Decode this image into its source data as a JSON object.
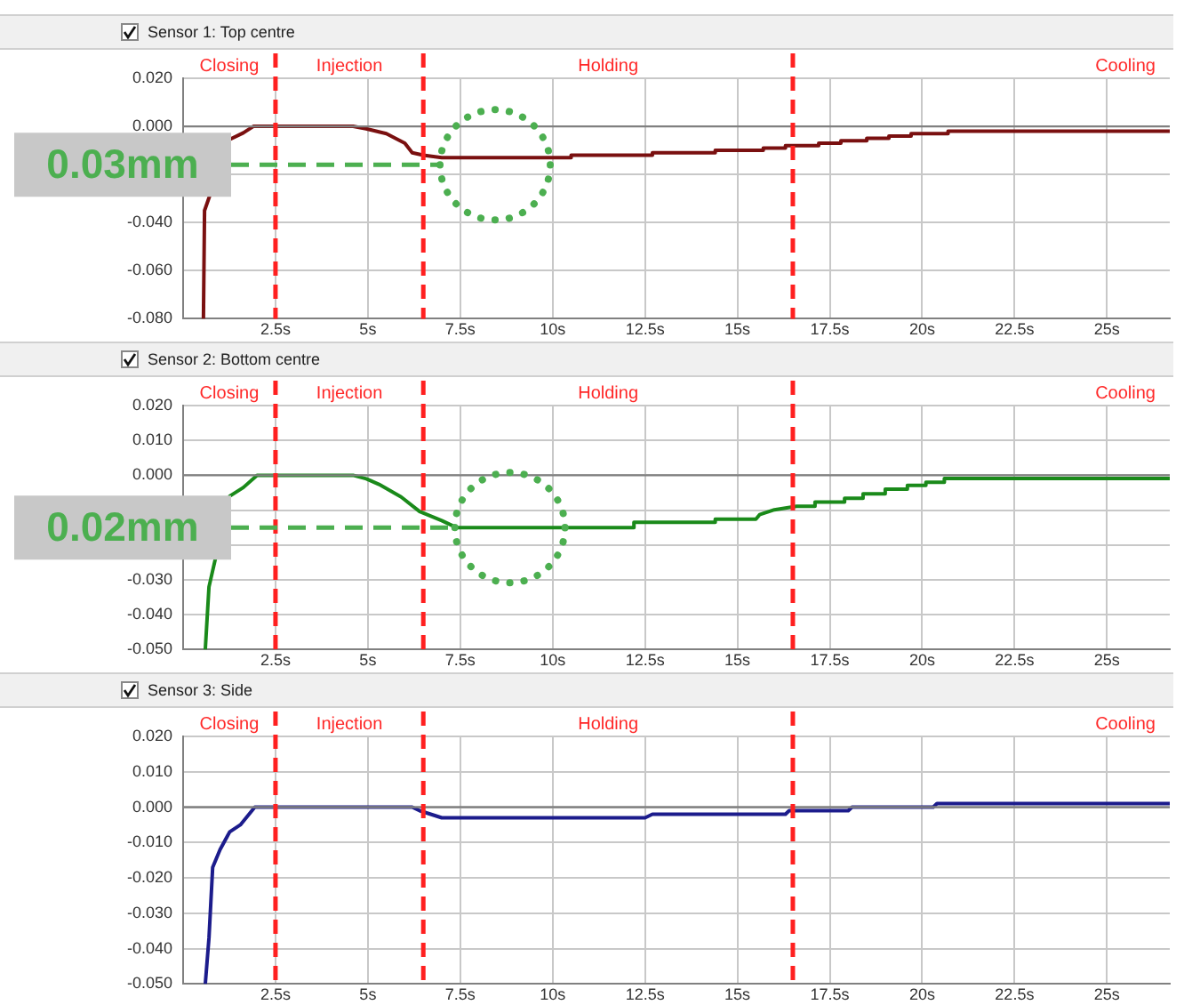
{
  "chart_data": [
    {
      "type": "line",
      "title": "Sensor 1: Top centre",
      "xlim": [
        0,
        26.7
      ],
      "ylim": [
        -0.08,
        0.02
      ],
      "xticks": [
        {
          "value": 2.5,
          "label": "2.5s"
        },
        {
          "value": 5,
          "label": "5s"
        },
        {
          "value": 7.5,
          "label": "7.5s"
        },
        {
          "value": 10,
          "label": "10s"
        },
        {
          "value": 12.5,
          "label": "12.5s"
        },
        {
          "value": 15,
          "label": "15s"
        },
        {
          "value": 17.5,
          "label": "17.5s"
        },
        {
          "value": 20,
          "label": "20s"
        },
        {
          "value": 22.5,
          "label": "22.5s"
        },
        {
          "value": 25,
          "label": "25s"
        }
      ],
      "yticks": [
        {
          "value": 0.02,
          "label": "0.020"
        },
        {
          "value": 0,
          "label": "0.000"
        },
        {
          "value": -0.02,
          "label": null
        },
        {
          "value": -0.04,
          "label": "-0.040"
        },
        {
          "value": -0.06,
          "label": "-0.060"
        },
        {
          "value": -0.08,
          "label": "-0.080"
        }
      ],
      "grid": true,
      "legend": false,
      "marker": "none",
      "series": [
        {
          "color": "#7a1010",
          "x": [
            0.55,
            0.58,
            0.6,
            0.7,
            1.25,
            1.63,
            1.9,
            4.6,
            4.95,
            5.5,
            6.0,
            6.2,
            6.5,
            7.0,
            10.5,
            10.5,
            12.7,
            12.7,
            14.4,
            14.4,
            15.7,
            15.7,
            16.3,
            16.3,
            17.2,
            17.2,
            17.8,
            17.8,
            18.5,
            18.5,
            19.1,
            19.1,
            19.7,
            19.7,
            20.7,
            20.7,
            26.7
          ],
          "values": [
            -0.08,
            -0.035,
            null,
            null,
            -0.0055,
            -0.0027,
            0,
            0,
            -0.001,
            -0.003,
            -0.007,
            -0.011,
            -0.012,
            -0.013,
            -0.013,
            -0.012,
            -0.012,
            -0.011,
            -0.011,
            -0.01,
            -0.01,
            -0.009,
            -0.009,
            -0.008,
            -0.008,
            -0.007,
            -0.007,
            -0.006,
            -0.006,
            -0.005,
            -0.005,
            -0.004,
            -0.004,
            -0.003,
            -0.003,
            -0.002,
            -0.002
          ]
        }
      ],
      "ref_lines": [
        {
          "axis": "y",
          "value": 0,
          "color": "#808080",
          "line_style": "solid"
        },
        {
          "axis": "x",
          "value": 2.5,
          "color": "#ff2020",
          "line_style": "dashed"
        },
        {
          "axis": "x",
          "value": 6.5,
          "color": "#ff2020",
          "line_style": "dashed"
        },
        {
          "axis": "x",
          "value": 16.5,
          "color": "#ff2020",
          "line_style": "dashed"
        }
      ],
      "annotations": [
        "Closing",
        "Injection",
        "Holding",
        "Cooling",
        {
          "text": "0.03mm",
          "x": 7,
          "y": -0.016
        }
      ]
    },
    {
      "type": "line",
      "title": "Sensor 2: Bottom centre",
      "xlim": [
        0,
        26.7
      ],
      "ylim": [
        -0.05,
        0.02
      ],
      "xticks": [
        {
          "value": 2.5,
          "label": "2.5s"
        },
        {
          "value": 5,
          "label": "5s"
        },
        {
          "value": 7.5,
          "label": "7.5s"
        },
        {
          "value": 10,
          "label": "10s"
        },
        {
          "value": 12.5,
          "label": "12.5s"
        },
        {
          "value": 15,
          "label": "15s"
        },
        {
          "value": 17.5,
          "label": "17.5s"
        },
        {
          "value": 20,
          "label": "20s"
        },
        {
          "value": 22.5,
          "label": "22.5s"
        },
        {
          "value": 25,
          "label": "25s"
        }
      ],
      "yticks": [
        {
          "value": 0.02,
          "label": "0.020"
        },
        {
          "value": 0.01,
          "label": "0.010"
        },
        {
          "value": 0,
          "label": "0.000"
        },
        {
          "value": -0.01,
          "label": null
        },
        {
          "value": -0.02,
          "label": null
        },
        {
          "value": -0.03,
          "label": "-0.030"
        },
        {
          "value": -0.04,
          "label": "-0.040"
        },
        {
          "value": -0.05,
          "label": "-0.050"
        }
      ],
      "grid": true,
      "legend": false,
      "marker": "none",
      "series": [
        {
          "color": "#1a8a1a",
          "x": [
            0.6,
            0.7,
            0.8,
            1.0,
            1.26,
            1.63,
            2.0,
            4.6,
            4.96,
            5.3,
            5.9,
            6.4,
            7.0,
            7.4,
            12.2,
            12.2,
            14.4,
            14.4,
            15.5,
            15.6,
            16.0,
            16.6,
            17.1,
            17.1,
            17.9,
            17.9,
            18.4,
            18.4,
            19.0,
            19.0,
            19.6,
            19.6,
            20.1,
            20.1,
            20.6,
            20.6,
            26.7
          ],
          "values": [
            -0.05,
            -0.032,
            null,
            null,
            -0.006,
            -0.0035,
            0,
            0,
            -0.001,
            -0.0026,
            -0.0062,
            -0.0104,
            -0.013,
            -0.015,
            -0.015,
            -0.0135,
            -0.0135,
            -0.0126,
            -0.0126,
            -0.0113,
            -0.0099,
            -0.0089,
            -0.0089,
            -0.0077,
            -0.0077,
            -0.0066,
            -0.0066,
            -0.0053,
            -0.0053,
            -0.004,
            -0.004,
            -0.0029,
            -0.0029,
            -0.002,
            -0.002,
            -0.0009,
            -0.0009
          ]
        }
      ],
      "ref_lines": [
        {
          "axis": "y",
          "value": 0,
          "color": "#808080",
          "line_style": "solid"
        },
        {
          "axis": "x",
          "value": 2.5,
          "color": "#ff2020",
          "line_style": "dashed"
        },
        {
          "axis": "x",
          "value": 6.5,
          "color": "#ff2020",
          "line_style": "dashed"
        },
        {
          "axis": "x",
          "value": 16.5,
          "color": "#ff2020",
          "line_style": "dashed"
        }
      ],
      "annotations": [
        "Closing",
        "Injection",
        "Holding",
        "Cooling",
        {
          "text": "0.02mm",
          "x": 7.4,
          "y": -0.015
        }
      ]
    },
    {
      "type": "line",
      "title": "Sensor 3: Side",
      "xlim": [
        0,
        26.7
      ],
      "ylim": [
        -0.05,
        0.02
      ],
      "xticks": [
        {
          "value": 2.5,
          "label": "2.5s"
        },
        {
          "value": 5,
          "label": "5s"
        },
        {
          "value": 7.5,
          "label": "7.5s"
        },
        {
          "value": 10,
          "label": "10s"
        },
        {
          "value": 12.5,
          "label": "12.5s"
        },
        {
          "value": 15,
          "label": "15s"
        },
        {
          "value": 17.5,
          "label": "17.5s"
        },
        {
          "value": 20,
          "label": "20s"
        },
        {
          "value": 22.5,
          "label": "22.5s"
        },
        {
          "value": 25,
          "label": "25s"
        }
      ],
      "yticks": [
        {
          "value": 0.02,
          "label": "0.020"
        },
        {
          "value": 0.01,
          "label": "0.010"
        },
        {
          "value": 0,
          "label": "0.000"
        },
        {
          "value": -0.01,
          "label": "-0.010"
        },
        {
          "value": -0.02,
          "label": "-0.020"
        },
        {
          "value": -0.03,
          "label": "-0.030"
        },
        {
          "value": -0.04,
          "label": "-0.040"
        },
        {
          "value": -0.05,
          "label": "-0.050"
        }
      ],
      "grid": true,
      "legend": false,
      "marker": "none",
      "series": [
        {
          "color": "#1c1c8c",
          "x": [
            0.6,
            0.7,
            0.8,
            1.0,
            1.26,
            1.55,
            1.94,
            6.2,
            6.4,
            6.7,
            7.0,
            12.5,
            12.7,
            16.3,
            16.4,
            18.0,
            18.1,
            20.3,
            20.4,
            26.7
          ],
          "values": [
            -0.05,
            -0.037,
            -0.017,
            -0.012,
            -0.007,
            -0.005,
            0,
            0,
            -0.001,
            -0.002,
            -0.003,
            -0.003,
            -0.002,
            -0.002,
            -0.001,
            -0.001,
            0,
            0,
            0.001,
            0.001
          ]
        }
      ],
      "ref_lines": [
        {
          "axis": "y",
          "value": 0,
          "color": "#808080",
          "line_style": "solid"
        },
        {
          "axis": "x",
          "value": 2.5,
          "color": "#ff2020",
          "line_style": "dashed"
        },
        {
          "axis": "x",
          "value": 6.5,
          "color": "#ff2020",
          "line_style": "dashed"
        },
        {
          "axis": "x",
          "value": 16.5,
          "color": "#ff2020",
          "line_style": "dashed"
        }
      ],
      "annotations": [
        "Closing",
        "Injection",
        "Holding",
        "Cooling"
      ]
    }
  ]
}
